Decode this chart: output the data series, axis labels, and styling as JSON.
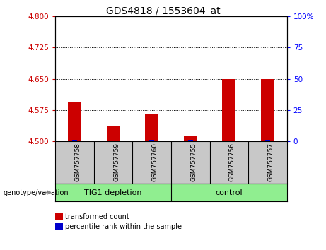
{
  "title": "GDS4818 / 1553604_at",
  "samples": [
    "GSM757758",
    "GSM757759",
    "GSM757760",
    "GSM757755",
    "GSM757756",
    "GSM757757"
  ],
  "red_values": [
    4.595,
    4.535,
    4.565,
    4.512,
    4.65,
    4.65
  ],
  "blue_values": [
    4.503,
    4.502,
    4.503,
    4.503,
    4.502,
    4.503
  ],
  "ylim_left": [
    4.5,
    4.8
  ],
  "ylim_right": [
    0,
    100
  ],
  "yticks_left": [
    4.5,
    4.575,
    4.65,
    4.725,
    4.8
  ],
  "yticks_right": [
    0,
    25,
    50,
    75,
    100
  ],
  "hlines": [
    4.575,
    4.65,
    4.725
  ],
  "group1_label": "TIG1 depletion",
  "group2_label": "control",
  "genotype_label": "genotype/variation",
  "legend1": "transformed count",
  "legend2": "percentile rank within the sample",
  "bar_color_red": "#CC0000",
  "bar_color_blue": "#0000CC",
  "group_color": "#90EE90",
  "sample_area_color": "#C8C8C8",
  "title_fontsize": 10,
  "tick_fontsize": 7.5,
  "label_fontsize": 8,
  "bar_width": 0.35,
  "blue_bar_width": 0.12
}
